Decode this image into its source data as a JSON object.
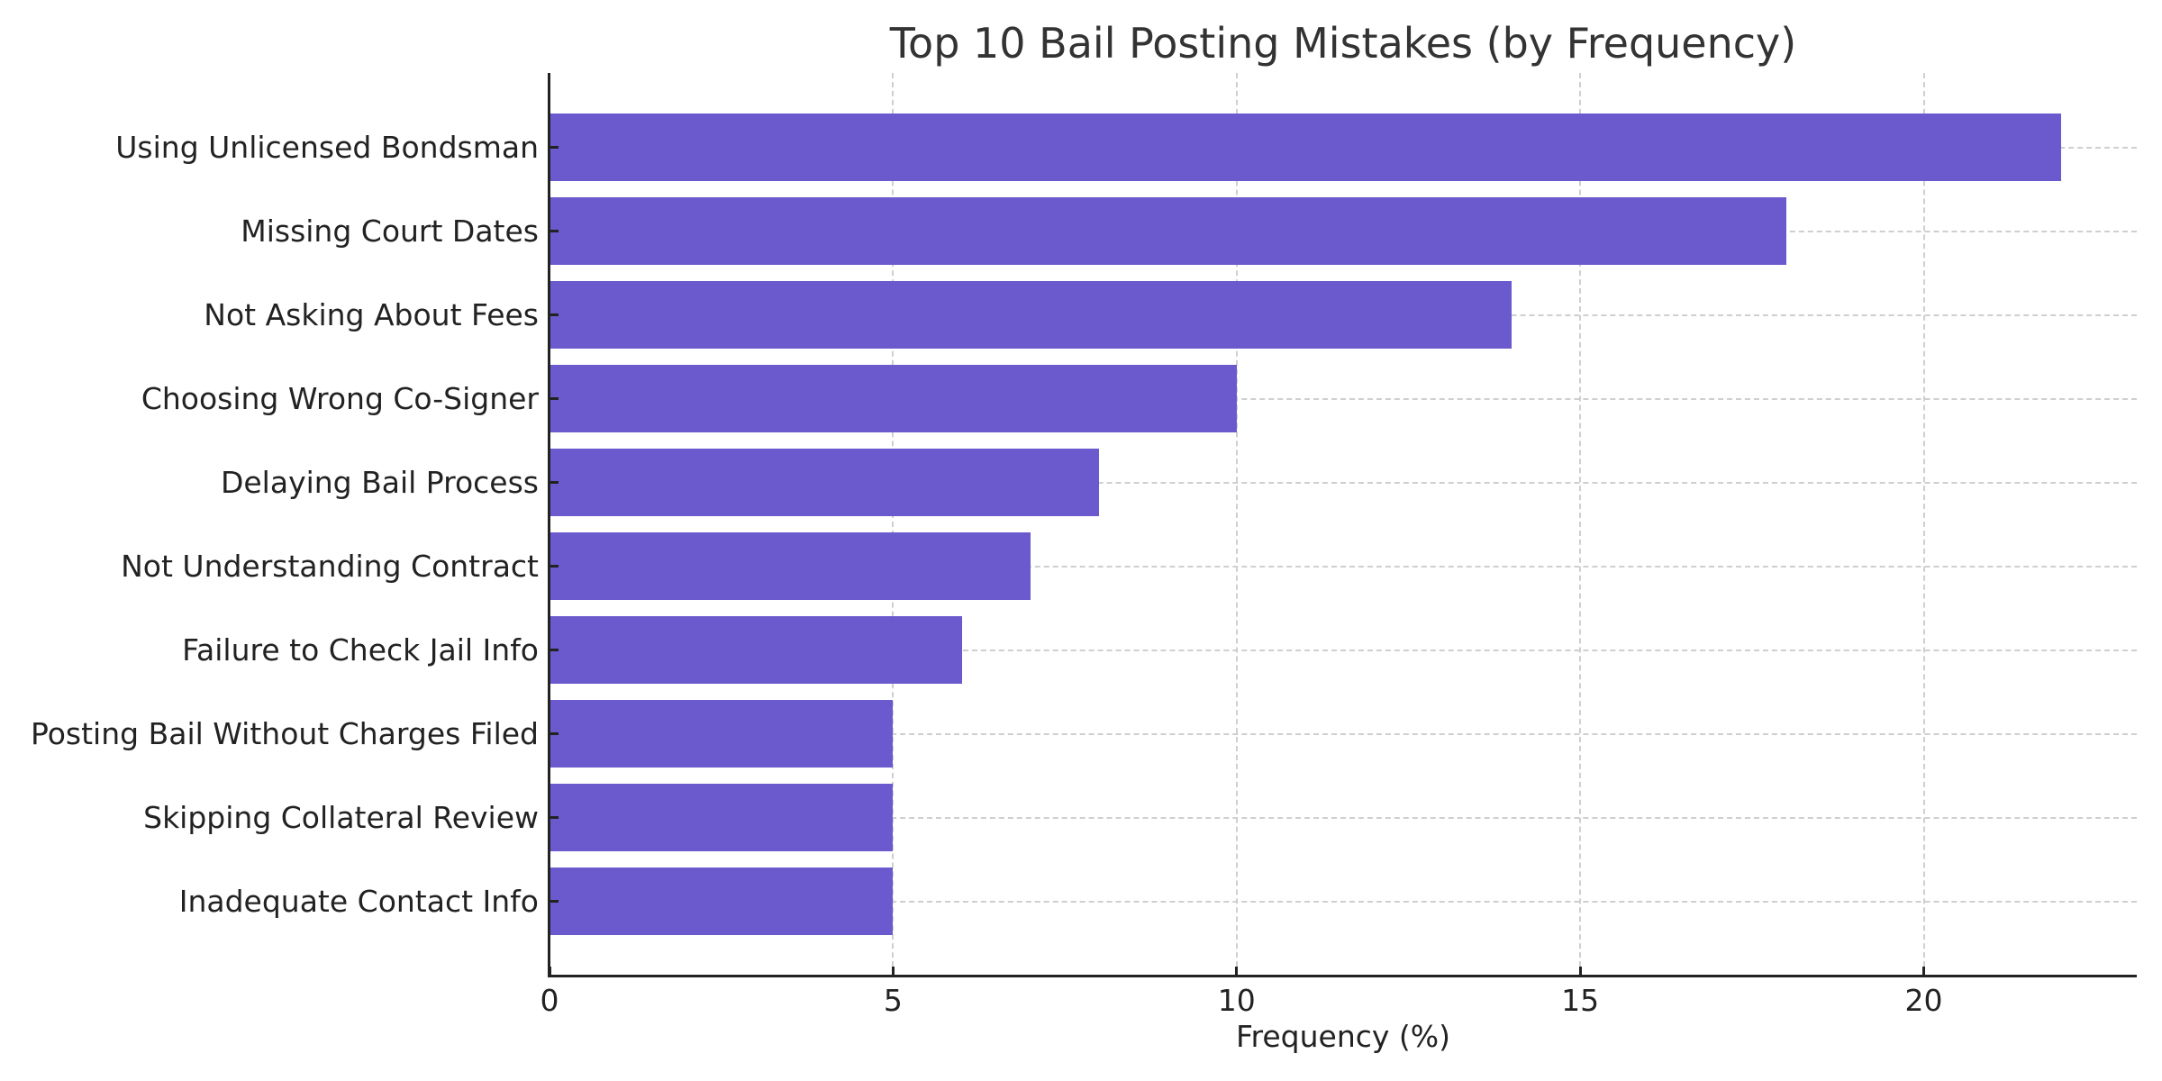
{
  "chart_data": {
    "type": "bar",
    "orientation": "horizontal",
    "title": "Top 10 Bail Posting Mistakes (by Frequency)",
    "xlabel": "Frequency (%)",
    "ylabel": "",
    "categories": [
      "Using Unlicensed Bondsman",
      "Missing Court Dates",
      "Not Asking About Fees",
      "Choosing Wrong Co-Signer",
      "Delaying Bail Process",
      "Not Understanding Contract",
      "Failure to Check Jail Info",
      "Posting Bail Without Charges Filed",
      "Skipping Collateral Review",
      "Inadequate Contact Info"
    ],
    "values": [
      22,
      18,
      14,
      10,
      8,
      7,
      6,
      5,
      5,
      5
    ],
    "xlim": [
      0,
      23.1
    ],
    "xticks": [
      0,
      5,
      10,
      15,
      20
    ],
    "xtick_labels": [
      "0",
      "5",
      "10",
      "15",
      "20"
    ],
    "grid": true,
    "grid_style": "dashed",
    "legend": null,
    "bar_color": "#6a5acd"
  }
}
